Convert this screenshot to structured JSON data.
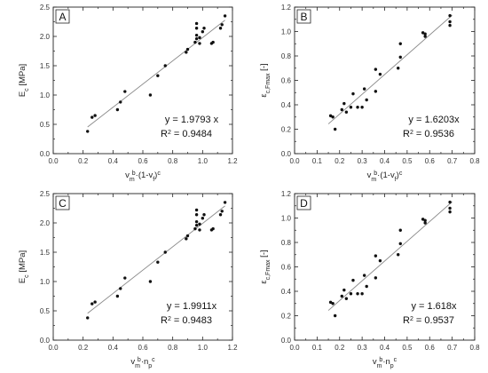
{
  "chart_data": [
    {
      "panel": "A",
      "type": "scatter",
      "ylabel": "E_c [MPa]",
      "ylabel_main": "E",
      "ylabel_sub": "c",
      "ylabel_rest": " [MPa]",
      "xlabel_html": "v_m^b·(1-v_f)^c",
      "xlim": [
        0.0,
        1.2
      ],
      "ylim": [
        0.0,
        2.5
      ],
      "xticks": [
        "0.0",
        "0.2",
        "0.4",
        "0.6",
        "0.8",
        "1.0",
        "1.2"
      ],
      "yticks": [
        "0.0",
        "0.5",
        "1.0",
        "1.5",
        "2.0",
        "2.5"
      ],
      "xtick_values": [
        0.0,
        0.2,
        0.4,
        0.6,
        0.8,
        1.0,
        1.2
      ],
      "ytick_values": [
        0.0,
        0.5,
        1.0,
        1.5,
        2.0,
        2.5
      ],
      "equation": "y = 1.9793 x",
      "r2_label": "R",
      "r2_exp": "2",
      "r2_value": " = 0.9484",
      "fit": {
        "x": [
          0.23,
          1.15
        ],
        "y": [
          0.455,
          2.276
        ]
      },
      "points": [
        [
          0.23,
          0.38
        ],
        [
          0.26,
          0.62
        ],
        [
          0.28,
          0.65
        ],
        [
          0.43,
          0.75
        ],
        [
          0.45,
          0.88
        ],
        [
          0.48,
          1.06
        ],
        [
          0.65,
          1.0
        ],
        [
          0.7,
          1.33
        ],
        [
          0.75,
          1.5
        ],
        [
          0.89,
          1.73
        ],
        [
          0.9,
          1.78
        ],
        [
          0.95,
          1.9
        ],
        [
          0.96,
          1.96
        ],
        [
          0.96,
          2.02
        ],
        [
          0.96,
          2.14
        ],
        [
          0.96,
          2.22
        ],
        [
          0.98,
          1.88
        ],
        [
          0.98,
          1.98
        ],
        [
          1.0,
          2.08
        ],
        [
          1.01,
          2.14
        ],
        [
          1.06,
          1.88
        ],
        [
          1.07,
          1.9
        ],
        [
          1.12,
          2.14
        ],
        [
          1.13,
          2.2
        ],
        [
          1.15,
          2.35
        ]
      ]
    },
    {
      "panel": "B",
      "type": "scatter",
      "ylabel": "ε_c,Fmax [-]",
      "ylabel_main": "ε",
      "ylabel_sub": "c,Fmax",
      "ylabel_rest": " [-]",
      "xlabel_html": "v_m^b·(1-v_f)^c",
      "xlim": [
        0.0,
        0.8
      ],
      "ylim": [
        0.0,
        1.2
      ],
      "xticks": [
        "0.0",
        "0.1",
        "0.2",
        "0.3",
        "0.4",
        "0.5",
        "0.6",
        "0.7",
        "0.8"
      ],
      "yticks": [
        "0.0",
        "0.2",
        "0.4",
        "0.6",
        "0.8",
        "1.0",
        "1.2"
      ],
      "xtick_values": [
        0.0,
        0.1,
        0.2,
        0.3,
        0.4,
        0.5,
        0.6,
        0.7,
        0.8
      ],
      "ytick_values": [
        0.0,
        0.2,
        0.4,
        0.6,
        0.8,
        1.0,
        1.2
      ],
      "equation": "y = 1.6203x",
      "r2_label": "R",
      "r2_exp": "2",
      "r2_value": " = 0.9536",
      "fit": {
        "x": [
          0.15,
          0.7
        ],
        "y": [
          0.243,
          1.134
        ]
      },
      "points": [
        [
          0.16,
          0.31
        ],
        [
          0.17,
          0.3
        ],
        [
          0.18,
          0.2
        ],
        [
          0.21,
          0.36
        ],
        [
          0.22,
          0.41
        ],
        [
          0.23,
          0.34
        ],
        [
          0.25,
          0.38
        ],
        [
          0.26,
          0.49
        ],
        [
          0.28,
          0.38
        ],
        [
          0.3,
          0.38
        ],
        [
          0.31,
          0.53
        ],
        [
          0.32,
          0.44
        ],
        [
          0.36,
          0.51
        ],
        [
          0.36,
          0.69
        ],
        [
          0.38,
          0.65
        ],
        [
          0.46,
          0.7
        ],
        [
          0.47,
          0.79
        ],
        [
          0.47,
          0.9
        ],
        [
          0.57,
          0.99
        ],
        [
          0.58,
          0.96
        ],
        [
          0.58,
          0.98
        ],
        [
          0.69,
          1.05
        ],
        [
          0.69,
          1.08
        ],
        [
          0.69,
          1.13
        ]
      ]
    },
    {
      "panel": "C",
      "type": "scatter",
      "ylabel": "E_c [MPa]",
      "ylabel_main": "E",
      "ylabel_sub": "c",
      "ylabel_rest": " [MPa]",
      "xlabel_html": "v_m^b·n_p^c",
      "xlim": [
        0.0,
        1.2
      ],
      "ylim": [
        0.0,
        2.5
      ],
      "xticks": [
        "0.0",
        "0.2",
        "0.4",
        "0.6",
        "0.8",
        "1.0",
        "1.2"
      ],
      "yticks": [
        "0.0",
        "0.5",
        "1.0",
        "1.5",
        "2.0",
        "2.5"
      ],
      "xtick_values": [
        0.0,
        0.2,
        0.4,
        0.6,
        0.8,
        1.0,
        1.2
      ],
      "ytick_values": [
        0.0,
        0.5,
        1.0,
        1.5,
        2.0,
        2.5
      ],
      "equation": "y = 1.9911x",
      "r2_label": "R",
      "r2_exp": "2",
      "r2_value": " = 0.9483",
      "fit": {
        "x": [
          0.23,
          1.15
        ],
        "y": [
          0.458,
          2.29
        ]
      },
      "points": [
        [
          0.23,
          0.38
        ],
        [
          0.26,
          0.62
        ],
        [
          0.28,
          0.65
        ],
        [
          0.43,
          0.75
        ],
        [
          0.45,
          0.88
        ],
        [
          0.48,
          1.06
        ],
        [
          0.65,
          1.0
        ],
        [
          0.7,
          1.33
        ],
        [
          0.75,
          1.5
        ],
        [
          0.89,
          1.73
        ],
        [
          0.9,
          1.78
        ],
        [
          0.95,
          1.9
        ],
        [
          0.96,
          1.96
        ],
        [
          0.96,
          2.02
        ],
        [
          0.96,
          2.14
        ],
        [
          0.96,
          2.22
        ],
        [
          0.98,
          1.88
        ],
        [
          0.98,
          1.98
        ],
        [
          1.0,
          2.08
        ],
        [
          1.01,
          2.14
        ],
        [
          1.06,
          1.88
        ],
        [
          1.07,
          1.9
        ],
        [
          1.12,
          2.14
        ],
        [
          1.13,
          2.2
        ],
        [
          1.15,
          2.35
        ]
      ]
    },
    {
      "panel": "D",
      "type": "scatter",
      "ylabel": "ε_c,Fmax [-]",
      "ylabel_main": "ε",
      "ylabel_sub": "c,Fmax",
      "ylabel_rest": " [-]",
      "xlabel_html": "v_m^b·n_p^c",
      "xlim": [
        0.0,
        0.8
      ],
      "ylim": [
        0.0,
        1.2
      ],
      "xticks": [
        "0.0",
        "0.1",
        "0.2",
        "0.3",
        "0.4",
        "0.5",
        "0.6",
        "0.7",
        "0.8"
      ],
      "yticks": [
        "0.0",
        "0.2",
        "0.4",
        "0.6",
        "0.8",
        "1.0",
        "1.2"
      ],
      "xtick_values": [
        0.0,
        0.1,
        0.2,
        0.3,
        0.4,
        0.5,
        0.6,
        0.7,
        0.8
      ],
      "ytick_values": [
        0.0,
        0.2,
        0.4,
        0.6,
        0.8,
        1.0,
        1.2
      ],
      "equation": "y = 1.618x",
      "r2_label": "R",
      "r2_exp": "2",
      "r2_value": " = 0.9537",
      "fit": {
        "x": [
          0.15,
          0.7
        ],
        "y": [
          0.243,
          1.133
        ]
      },
      "points": [
        [
          0.16,
          0.31
        ],
        [
          0.17,
          0.3
        ],
        [
          0.18,
          0.2
        ],
        [
          0.21,
          0.36
        ],
        [
          0.22,
          0.41
        ],
        [
          0.23,
          0.34
        ],
        [
          0.25,
          0.38
        ],
        [
          0.26,
          0.49
        ],
        [
          0.28,
          0.38
        ],
        [
          0.3,
          0.38
        ],
        [
          0.31,
          0.53
        ],
        [
          0.32,
          0.44
        ],
        [
          0.36,
          0.51
        ],
        [
          0.36,
          0.69
        ],
        [
          0.38,
          0.65
        ],
        [
          0.46,
          0.7
        ],
        [
          0.47,
          0.79
        ],
        [
          0.47,
          0.9
        ],
        [
          0.57,
          0.99
        ],
        [
          0.58,
          0.96
        ],
        [
          0.58,
          0.98
        ],
        [
          0.69,
          1.05
        ],
        [
          0.69,
          1.08
        ],
        [
          0.69,
          1.13
        ]
      ]
    }
  ],
  "xlabels": [
    {
      "main": "v",
      "sub1": "m",
      "sup1": "b",
      "mid": "·(1-v",
      "sub2": "f",
      "end": ")",
      "sup2": "c"
    },
    {
      "main": "v",
      "sub1": "m",
      "sup1": "b",
      "mid": "·(1-v",
      "sub2": "f",
      "end": ")",
      "sup2": "c"
    },
    {
      "main": "v",
      "sub1": "m",
      "sup1": "b",
      "mid": "·n",
      "sub2": "p",
      "end": "",
      "sup2": "c"
    },
    {
      "main": "v",
      "sub1": "m",
      "sup1": "b",
      "mid": "·n",
      "sub2": "p",
      "end": "",
      "sup2": "c"
    }
  ]
}
